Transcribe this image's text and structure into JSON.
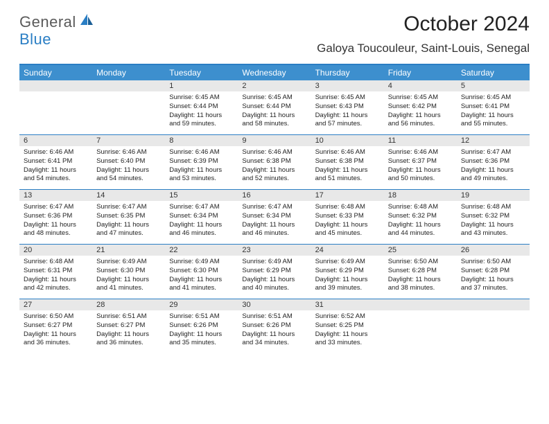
{
  "logo": {
    "general": "General",
    "blue": "Blue"
  },
  "title": "October 2024",
  "location": "Galoya Toucouleur, Saint-Louis, Senegal",
  "dayNames": [
    "Sunday",
    "Monday",
    "Tuesday",
    "Wednesday",
    "Thursday",
    "Friday",
    "Saturday"
  ],
  "colors": {
    "headerBlue": "#3d8fce",
    "borderBlue": "#2a7ec4",
    "dayNumBg": "#e8e8e8",
    "logoGray": "#5a5a5a",
    "logoBlue": "#2a7ec4"
  },
  "weeks": [
    [
      {
        "n": "",
        "empty": true
      },
      {
        "n": "",
        "empty": true
      },
      {
        "n": "1",
        "sunrise": "6:45 AM",
        "sunset": "6:44 PM",
        "daylight": "11 hours and 59 minutes."
      },
      {
        "n": "2",
        "sunrise": "6:45 AM",
        "sunset": "6:44 PM",
        "daylight": "11 hours and 58 minutes."
      },
      {
        "n": "3",
        "sunrise": "6:45 AM",
        "sunset": "6:43 PM",
        "daylight": "11 hours and 57 minutes."
      },
      {
        "n": "4",
        "sunrise": "6:45 AM",
        "sunset": "6:42 PM",
        "daylight": "11 hours and 56 minutes."
      },
      {
        "n": "5",
        "sunrise": "6:45 AM",
        "sunset": "6:41 PM",
        "daylight": "11 hours and 55 minutes."
      }
    ],
    [
      {
        "n": "6",
        "sunrise": "6:46 AM",
        "sunset": "6:41 PM",
        "daylight": "11 hours and 54 minutes."
      },
      {
        "n": "7",
        "sunrise": "6:46 AM",
        "sunset": "6:40 PM",
        "daylight": "11 hours and 54 minutes."
      },
      {
        "n": "8",
        "sunrise": "6:46 AM",
        "sunset": "6:39 PM",
        "daylight": "11 hours and 53 minutes."
      },
      {
        "n": "9",
        "sunrise": "6:46 AM",
        "sunset": "6:38 PM",
        "daylight": "11 hours and 52 minutes."
      },
      {
        "n": "10",
        "sunrise": "6:46 AM",
        "sunset": "6:38 PM",
        "daylight": "11 hours and 51 minutes."
      },
      {
        "n": "11",
        "sunrise": "6:46 AM",
        "sunset": "6:37 PM",
        "daylight": "11 hours and 50 minutes."
      },
      {
        "n": "12",
        "sunrise": "6:47 AM",
        "sunset": "6:36 PM",
        "daylight": "11 hours and 49 minutes."
      }
    ],
    [
      {
        "n": "13",
        "sunrise": "6:47 AM",
        "sunset": "6:36 PM",
        "daylight": "11 hours and 48 minutes."
      },
      {
        "n": "14",
        "sunrise": "6:47 AM",
        "sunset": "6:35 PM",
        "daylight": "11 hours and 47 minutes."
      },
      {
        "n": "15",
        "sunrise": "6:47 AM",
        "sunset": "6:34 PM",
        "daylight": "11 hours and 46 minutes."
      },
      {
        "n": "16",
        "sunrise": "6:47 AM",
        "sunset": "6:34 PM",
        "daylight": "11 hours and 46 minutes."
      },
      {
        "n": "17",
        "sunrise": "6:48 AM",
        "sunset": "6:33 PM",
        "daylight": "11 hours and 45 minutes."
      },
      {
        "n": "18",
        "sunrise": "6:48 AM",
        "sunset": "6:32 PM",
        "daylight": "11 hours and 44 minutes."
      },
      {
        "n": "19",
        "sunrise": "6:48 AM",
        "sunset": "6:32 PM",
        "daylight": "11 hours and 43 minutes."
      }
    ],
    [
      {
        "n": "20",
        "sunrise": "6:48 AM",
        "sunset": "6:31 PM",
        "daylight": "11 hours and 42 minutes."
      },
      {
        "n": "21",
        "sunrise": "6:49 AM",
        "sunset": "6:30 PM",
        "daylight": "11 hours and 41 minutes."
      },
      {
        "n": "22",
        "sunrise": "6:49 AM",
        "sunset": "6:30 PM",
        "daylight": "11 hours and 41 minutes."
      },
      {
        "n": "23",
        "sunrise": "6:49 AM",
        "sunset": "6:29 PM",
        "daylight": "11 hours and 40 minutes."
      },
      {
        "n": "24",
        "sunrise": "6:49 AM",
        "sunset": "6:29 PM",
        "daylight": "11 hours and 39 minutes."
      },
      {
        "n": "25",
        "sunrise": "6:50 AM",
        "sunset": "6:28 PM",
        "daylight": "11 hours and 38 minutes."
      },
      {
        "n": "26",
        "sunrise": "6:50 AM",
        "sunset": "6:28 PM",
        "daylight": "11 hours and 37 minutes."
      }
    ],
    [
      {
        "n": "27",
        "sunrise": "6:50 AM",
        "sunset": "6:27 PM",
        "daylight": "11 hours and 36 minutes."
      },
      {
        "n": "28",
        "sunrise": "6:51 AM",
        "sunset": "6:27 PM",
        "daylight": "11 hours and 36 minutes."
      },
      {
        "n": "29",
        "sunrise": "6:51 AM",
        "sunset": "6:26 PM",
        "daylight": "11 hours and 35 minutes."
      },
      {
        "n": "30",
        "sunrise": "6:51 AM",
        "sunset": "6:26 PM",
        "daylight": "11 hours and 34 minutes."
      },
      {
        "n": "31",
        "sunrise": "6:52 AM",
        "sunset": "6:25 PM",
        "daylight": "11 hours and 33 minutes."
      },
      {
        "n": "",
        "empty": true
      },
      {
        "n": "",
        "empty": true
      }
    ]
  ],
  "labels": {
    "sunrise": "Sunrise:",
    "sunset": "Sunset:",
    "daylight": "Daylight:"
  }
}
